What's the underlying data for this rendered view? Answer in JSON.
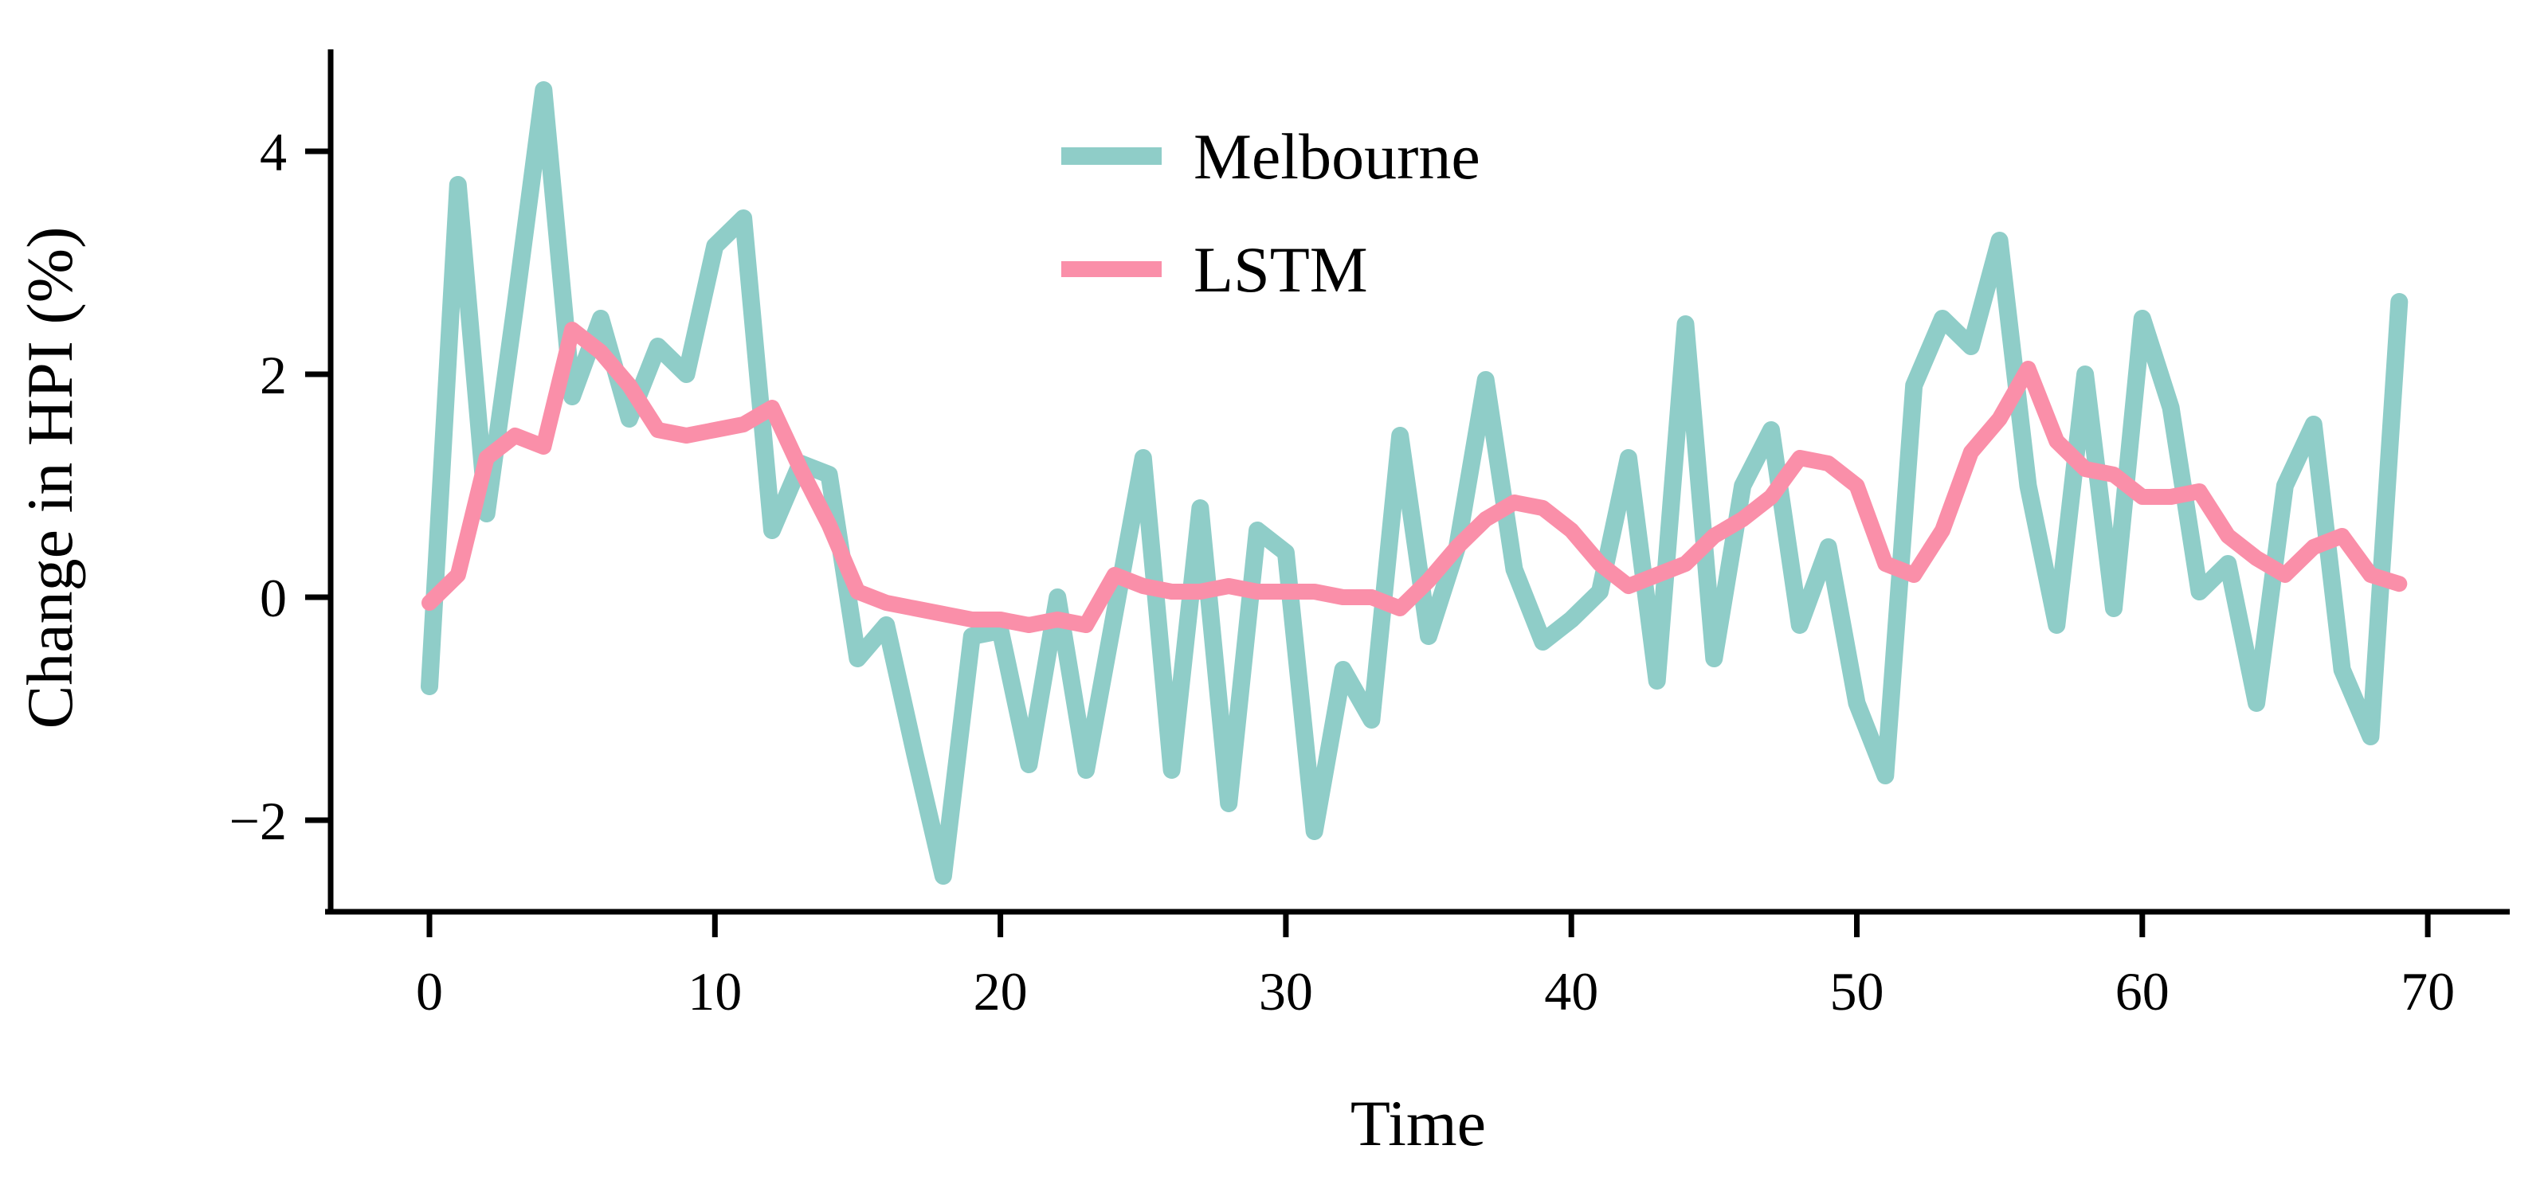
{
  "figure": {
    "background": "#ffffff",
    "axis_color": "#000000"
  },
  "chart_data": {
    "type": "line",
    "title": "",
    "xlabel": "Time",
    "ylabel": "Change in HPI (%)",
    "xlim": [
      -3.5,
      72.5
    ],
    "ylim": [
      -2.85,
      4.9
    ],
    "xticks": [
      0,
      10,
      20,
      30,
      40,
      50,
      60,
      70
    ],
    "yticks": [
      4,
      2,
      0,
      -2
    ],
    "grid": false,
    "legend_position": "upper center",
    "x": [
      0,
      1,
      2,
      3,
      4,
      5,
      6,
      7,
      8,
      9,
      10,
      11,
      12,
      13,
      14,
      15,
      16,
      17,
      18,
      19,
      20,
      21,
      22,
      23,
      24,
      25,
      26,
      27,
      28,
      29,
      30,
      31,
      32,
      33,
      34,
      35,
      36,
      37,
      38,
      39,
      40,
      41,
      42,
      43,
      44,
      45,
      46,
      47,
      48,
      49,
      50,
      51,
      52,
      53,
      54,
      55,
      56,
      57,
      58,
      59,
      60,
      61,
      62,
      63,
      64,
      65,
      66,
      67,
      68,
      69
    ],
    "series": [
      {
        "name": "Melbourne",
        "color": "#8FCDC8",
        "line_width": 22,
        "values": [
          -0.8,
          3.7,
          0.75,
          2.6,
          4.55,
          1.8,
          2.5,
          1.6,
          2.25,
          2.0,
          3.15,
          3.4,
          0.6,
          1.2,
          1.1,
          -0.55,
          -0.25,
          -1.4,
          -2.5,
          -0.35,
          -0.3,
          -1.5,
          0.0,
          -1.55,
          -0.15,
          1.25,
          -1.55,
          0.8,
          -1.85,
          0.6,
          0.4,
          -2.1,
          -0.65,
          -1.1,
          1.45,
          -0.35,
          0.45,
          1.95,
          0.25,
          -0.4,
          -0.2,
          0.05,
          1.25,
          -0.75,
          2.45,
          -0.55,
          1.0,
          1.5,
          -0.25,
          0.45,
          -0.95,
          -1.6,
          1.9,
          2.5,
          2.25,
          3.2,
          1.0,
          -0.25,
          2.0,
          -0.1,
          2.5,
          1.7,
          0.05,
          0.3,
          -0.95,
          1.0,
          1.55,
          -0.65,
          -1.25,
          2.65
        ]
      },
      {
        "name": "LSTM",
        "color": "#FA8FA9",
        "line_width": 20,
        "values": [
          -0.05,
          0.2,
          1.25,
          1.45,
          1.35,
          2.4,
          2.2,
          1.9,
          1.5,
          1.45,
          1.5,
          1.55,
          1.7,
          1.15,
          0.65,
          0.05,
          -0.05,
          -0.1,
          -0.15,
          -0.2,
          -0.2,
          -0.25,
          -0.2,
          -0.25,
          0.2,
          0.1,
          0.05,
          0.05,
          0.1,
          0.05,
          0.05,
          0.05,
          0.0,
          0.0,
          -0.1,
          0.15,
          0.45,
          0.7,
          0.85,
          0.8,
          0.6,
          0.3,
          0.1,
          0.2,
          0.3,
          0.55,
          0.7,
          0.9,
          1.25,
          1.2,
          1.0,
          0.3,
          0.2,
          0.6,
          1.3,
          1.6,
          2.05,
          1.4,
          1.15,
          1.1,
          0.9,
          0.9,
          0.95,
          0.55,
          0.35,
          0.2,
          0.45,
          0.55,
          0.2,
          0.12
        ]
      }
    ]
  }
}
